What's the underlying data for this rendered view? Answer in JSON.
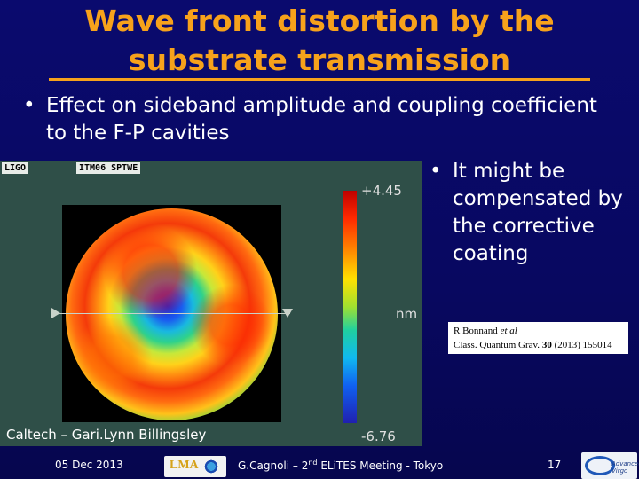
{
  "slide": {
    "title_line1": "Wave front distortion by the",
    "title_line2": "substrate transmission",
    "bullet_main": "Effect on sideband amplitude and coupling coefficient to the F-P cavities",
    "bullet_side": "It might be compensated by the corrective coating",
    "bullet_glyph": "•"
  },
  "map": {
    "logo": "LIGO",
    "tag": "ITM06 SPTWE",
    "colorbar_max": "+4.45",
    "colorbar_unit": "nm",
    "colorbar_min": "-6.76",
    "credit": "Caltech – Gari.Lynn Billingsley"
  },
  "reference": {
    "author_plain": "R Bonnand ",
    "author_italic": "et al",
    "journal": "Class. Quantum Grav. ",
    "volume": "30",
    "year_page": " (2013) 155014"
  },
  "footer": {
    "date": "05 Dec 2013",
    "logo_text": "LMA",
    "presenter_pre": "G.Cagnoli – 2",
    "presenter_sup": "nd",
    "presenter_post": " ELiTES Meeting - Tokyo",
    "page": "17",
    "virgo_word": "Advanced Virgo"
  }
}
